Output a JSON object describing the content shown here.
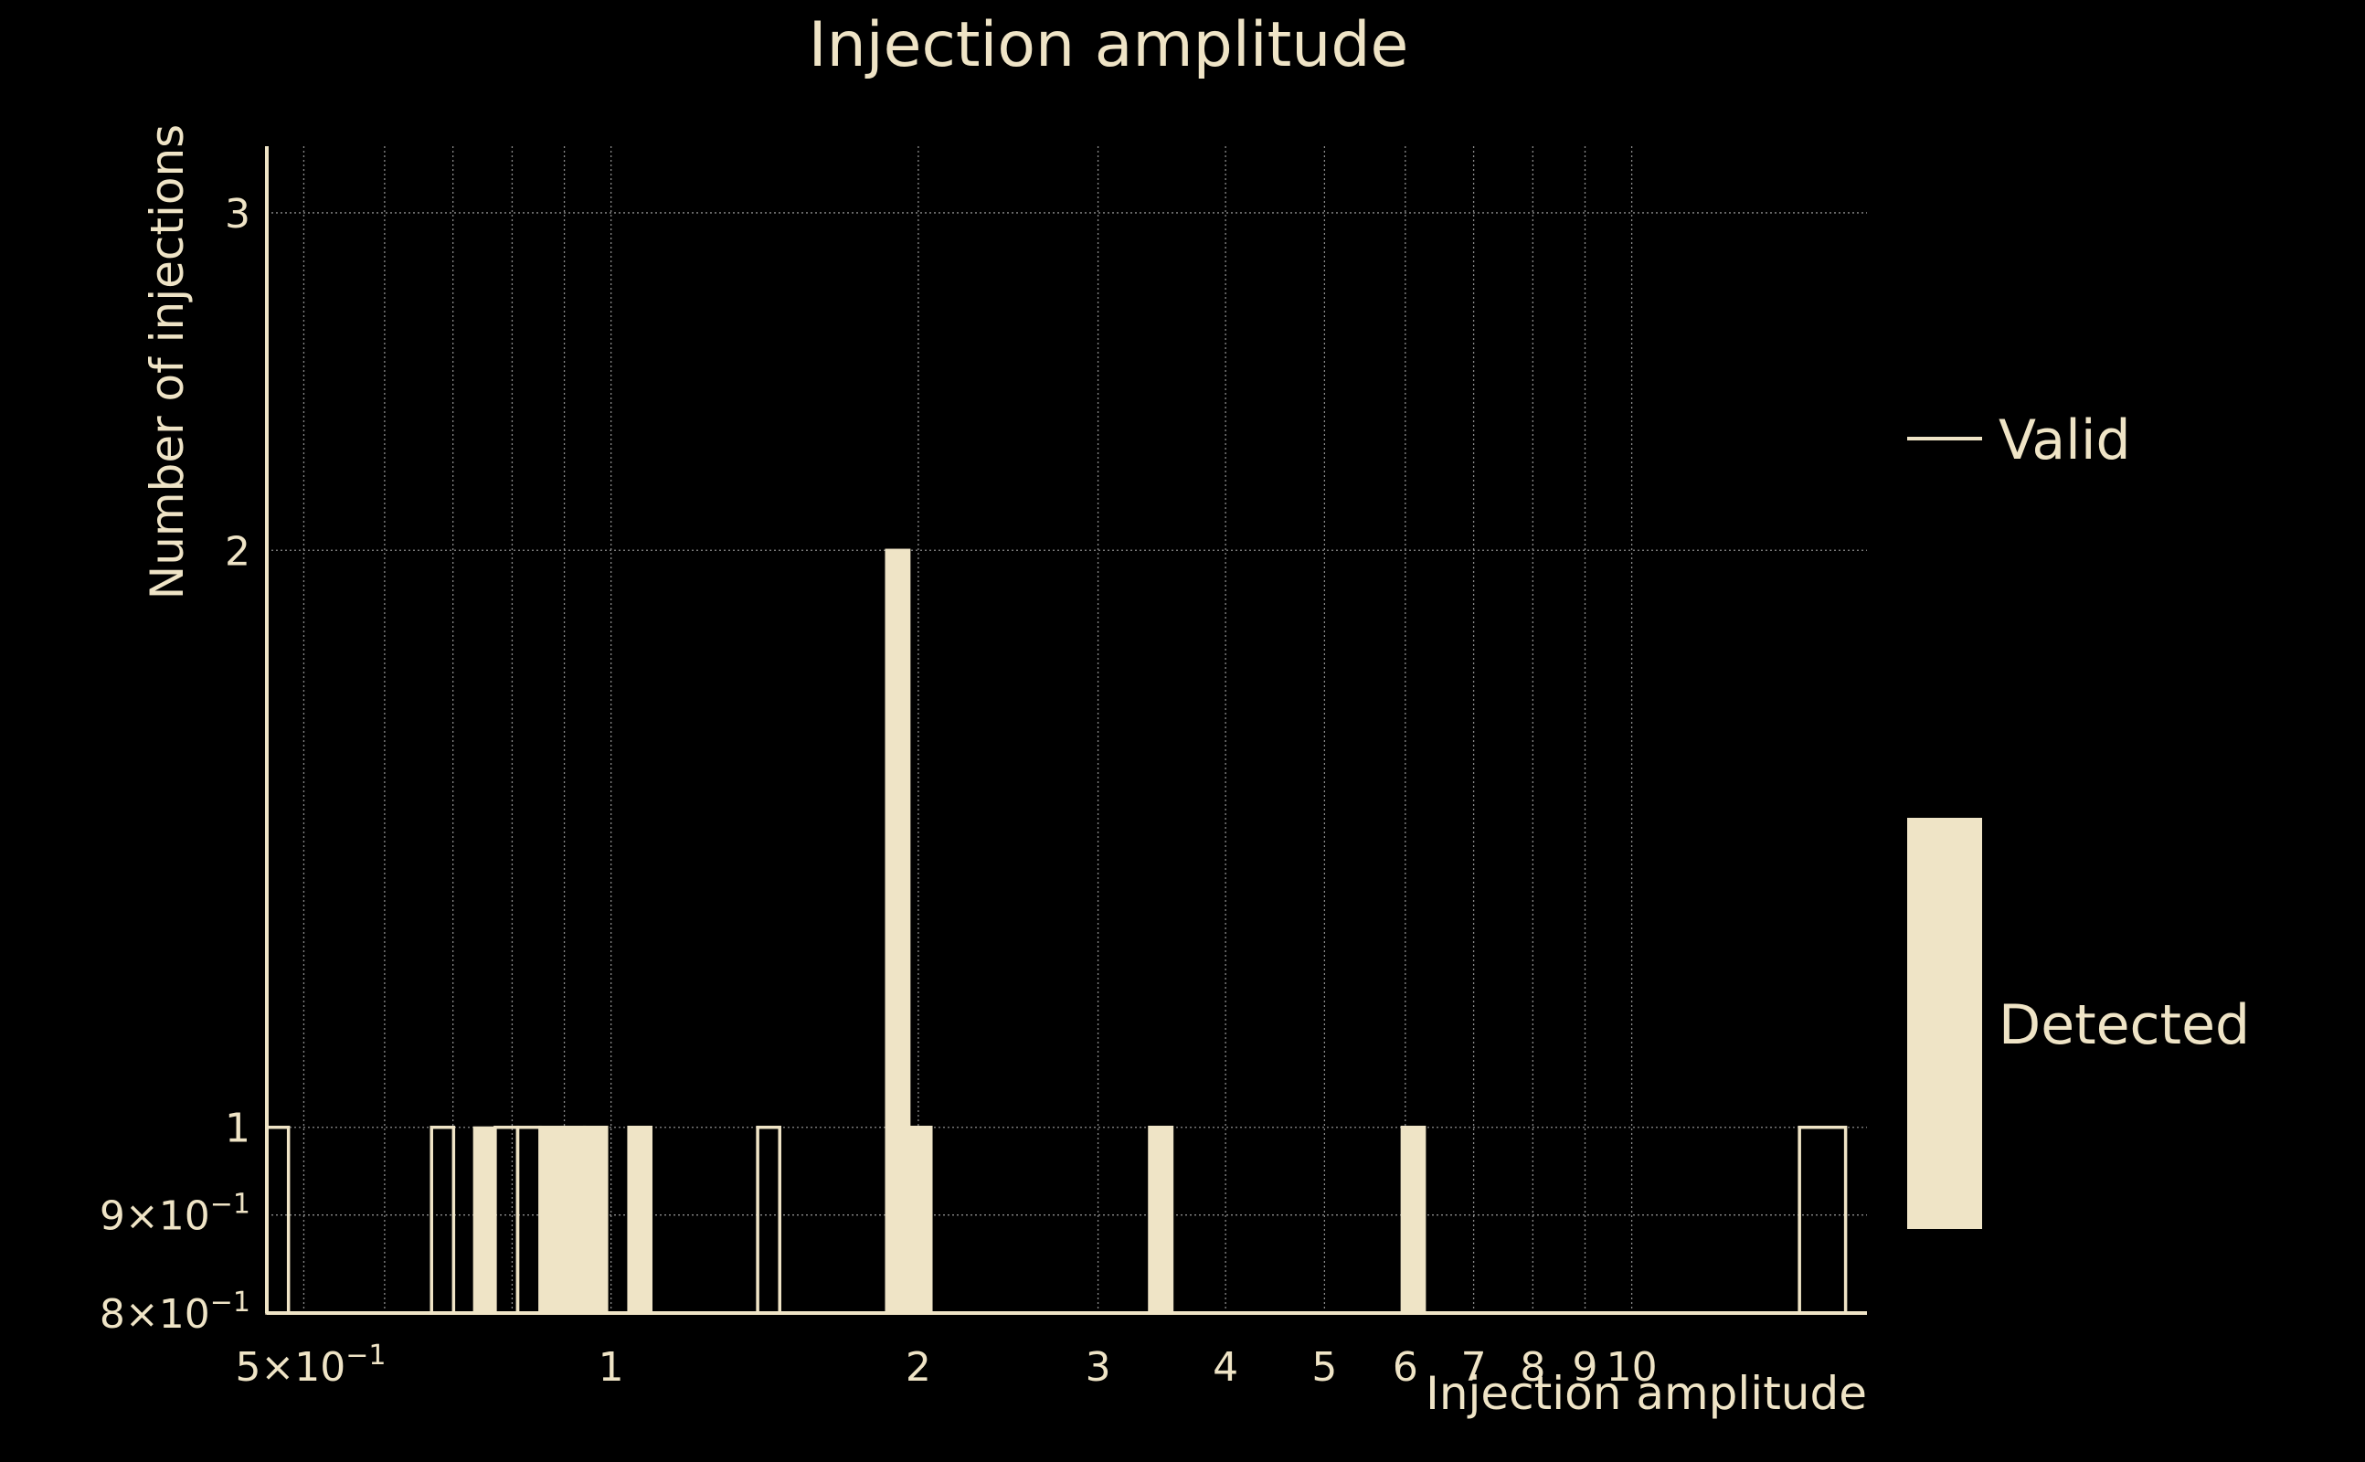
{
  "chart_data": {
    "type": "bar",
    "title": "Injection amplitude",
    "xlabel": "Injection amplitude",
    "ylabel": "Number of injections",
    "x_scale": "log",
    "y_scale": "log",
    "xlim": [
      0.46,
      17
    ],
    "ylim": [
      0.8,
      3.25
    ],
    "grid": true,
    "legend_placement": "right",
    "x_ticks": [
      {
        "value": 0.5,
        "label": "5×10",
        "exp": "−1"
      },
      {
        "value": 1,
        "label": "1",
        "exp": ""
      },
      {
        "value": 2,
        "label": "2",
        "exp": ""
      },
      {
        "value": 3,
        "label": "3",
        "exp": ""
      },
      {
        "value": 4,
        "label": "4",
        "exp": ""
      },
      {
        "value": 5,
        "label": "5",
        "exp": ""
      },
      {
        "value": 6,
        "label": "6",
        "exp": ""
      },
      {
        "value": 7,
        "label": "7",
        "exp": ""
      },
      {
        "value": 8,
        "label": "8",
        "exp": ""
      },
      {
        "value": 9,
        "label": "9",
        "exp": ""
      },
      {
        "value": 10,
        "label": "10",
        "exp": ""
      }
    ],
    "x_minor_gridlines": [
      0.6,
      0.7,
      0.8,
      0.9
    ],
    "y_ticks": [
      {
        "value": 0.8,
        "label": "8×10",
        "exp": "−1"
      },
      {
        "value": 0.9,
        "label": "9×10",
        "exp": "−1"
      },
      {
        "value": 1,
        "label": "1",
        "exp": ""
      },
      {
        "value": 2,
        "label": "2",
        "exp": ""
      },
      {
        "value": 3,
        "label": "3",
        "exp": ""
      }
    ],
    "series": [
      {
        "name": "Valid",
        "style": "outline",
        "bars": [
          {
            "x0": 0.46,
            "x1": 0.483,
            "value": 1
          },
          {
            "x0": 0.667,
            "x1": 0.701,
            "value": 1
          },
          {
            "x0": 0.77,
            "x1": 0.81,
            "value": 1
          },
          {
            "x0": 0.81,
            "x1": 0.852,
            "value": 1
          },
          {
            "x0": 0.852,
            "x1": 0.896,
            "value": 1
          },
          {
            "x0": 0.896,
            "x1": 0.942,
            "value": 1
          },
          {
            "x0": 0.942,
            "x1": 0.99,
            "value": 1
          },
          {
            "x0": 1.041,
            "x1": 1.094,
            "value": 1
          },
          {
            "x0": 1.392,
            "x1": 1.463,
            "value": 1
          },
          {
            "x0": 1.862,
            "x1": 1.958,
            "value": 2
          },
          {
            "x0": 1.958,
            "x1": 2.058,
            "value": 1
          },
          {
            "x0": 3.37,
            "x1": 3.544,
            "value": 1
          },
          {
            "x0": 5.958,
            "x1": 6.263,
            "value": 1
          },
          {
            "x0": 14.6,
            "x1": 16.2,
            "value": 1
          }
        ]
      },
      {
        "name": "Detected",
        "style": "filled",
        "bars": [
          {
            "x0": 0.734,
            "x1": 0.77,
            "value": 1
          },
          {
            "x0": 0.852,
            "x1": 0.896,
            "value": 1
          },
          {
            "x0": 0.896,
            "x1": 0.942,
            "value": 1
          },
          {
            "x0": 0.942,
            "x1": 0.99,
            "value": 1
          },
          {
            "x0": 1.041,
            "x1": 1.094,
            "value": 1
          },
          {
            "x0": 1.862,
            "x1": 1.958,
            "value": 2
          },
          {
            "x0": 1.958,
            "x1": 2.058,
            "value": 1
          },
          {
            "x0": 3.37,
            "x1": 3.544,
            "value": 1
          },
          {
            "x0": 5.958,
            "x1": 6.263,
            "value": 1
          }
        ]
      }
    ],
    "colors": {
      "background": "#000000",
      "foreground": "#efe4c6",
      "grid": "#8a8a8a"
    }
  }
}
